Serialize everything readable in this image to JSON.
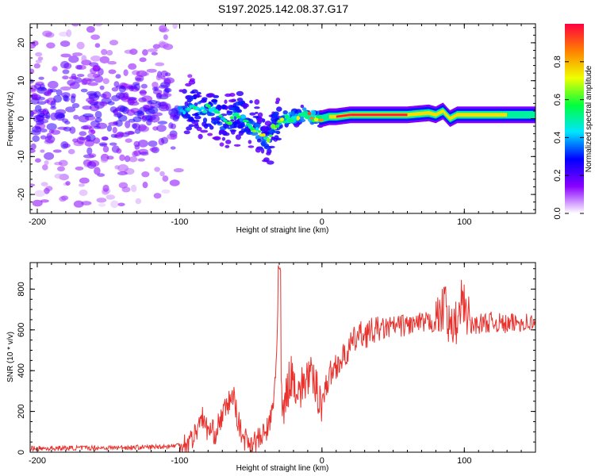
{
  "title": "S197.2025.142.08.37.G17",
  "colors": {
    "snr_line": "#e8322e",
    "axes": "#000000",
    "track_high": "#e8003a"
  },
  "chart_data": [
    {
      "type": "heatmap",
      "name": "spectrogram",
      "xlabel": "Height of straight line (km)",
      "ylabel": "Frequency (Hz)",
      "xlim": [
        -205,
        150
      ],
      "ylim": [
        -25,
        25
      ],
      "xticks": [
        -200,
        -100,
        0,
        100
      ],
      "yticks": [
        -20,
        -10,
        0,
        10,
        20
      ],
      "grid": false,
      "colorbar": {
        "label": "Normalized spectral amplitude",
        "range": [
          0,
          1
        ],
        "ticks": [
          0.0,
          0.2,
          0.4,
          0.6,
          0.8
        ],
        "colormap": [
          "#ffffff",
          "#8a00ff",
          "#0000ff",
          "#00e5ff",
          "#00ff3c",
          "#f0ff00",
          "#ff8000",
          "#ff0040"
        ]
      },
      "dominant_frequency_track": {
        "x": [
          -100,
          -95,
          -90,
          -85,
          -80,
          -75,
          -70,
          -65,
          -60,
          -55,
          -50,
          -45,
          -40,
          -38,
          -35,
          -30,
          -25,
          -20,
          -15,
          -10,
          -5,
          0,
          5,
          10,
          20,
          40,
          60,
          75,
          80,
          85,
          90,
          95,
          100,
          120,
          150
        ],
        "y": [
          2,
          2,
          3,
          2,
          3,
          2,
          0,
          -1,
          1,
          0,
          -2,
          -3,
          -5,
          -6,
          -3,
          -1,
          0,
          0,
          1,
          1,
          0,
          0,
          0.5,
          0.5,
          1,
          1,
          1,
          1.5,
          1,
          2,
          0,
          1,
          1,
          1,
          1
        ]
      },
      "amplitude_regions": [
        {
          "x": [
            -205,
            -100
          ],
          "freq_spread": 20,
          "level": 0.15
        },
        {
          "x": [
            -100,
            -30
          ],
          "freq_spread": 10,
          "level": 0.4
        },
        {
          "x": [
            -30,
            0
          ],
          "freq_spread": 3,
          "level": 0.6
        },
        {
          "x": [
            0,
            150
          ],
          "freq_spread": 1.5,
          "level": 0.95
        }
      ]
    },
    {
      "type": "line",
      "name": "snr",
      "xlabel": "Height of straight line (km)",
      "ylabel": "SNR (10 * v/v)",
      "xlim": [
        -205,
        150
      ],
      "ylim": [
        0,
        930
      ],
      "xticks": [
        -200,
        -100,
        0,
        100
      ],
      "yticks": [
        0,
        200,
        400,
        600,
        800
      ],
      "grid": false,
      "series": [
        {
          "x": [
            -205,
            -180,
            -150,
            -120,
            -105,
            -95,
            -90,
            -87,
            -85,
            -83,
            -80,
            -75,
            -70,
            -65,
            -62,
            -60,
            -57,
            -55,
            -50,
            -45,
            -40,
            -36,
            -34,
            -32,
            -30,
            -28,
            -25,
            -22,
            -20,
            -15,
            -10,
            -5,
            0,
            5,
            10,
            15,
            20,
            25,
            30,
            40,
            50,
            60,
            70,
            80,
            85,
            90,
            95,
            100,
            105,
            110,
            120,
            130,
            140,
            150
          ],
          "y": [
            18,
            20,
            22,
            25,
            30,
            45,
            80,
            120,
            200,
            140,
            110,
            95,
            180,
            250,
            280,
            190,
            100,
            70,
            50,
            60,
            90,
            160,
            230,
            470,
            920,
            150,
            280,
            380,
            350,
            300,
            380,
            330,
            250,
            370,
            430,
            460,
            520,
            570,
            580,
            600,
            615,
            625,
            630,
            640,
            700,
            600,
            640,
            720,
            620,
            630,
            640,
            625,
            640,
            630
          ]
        }
      ]
    }
  ]
}
